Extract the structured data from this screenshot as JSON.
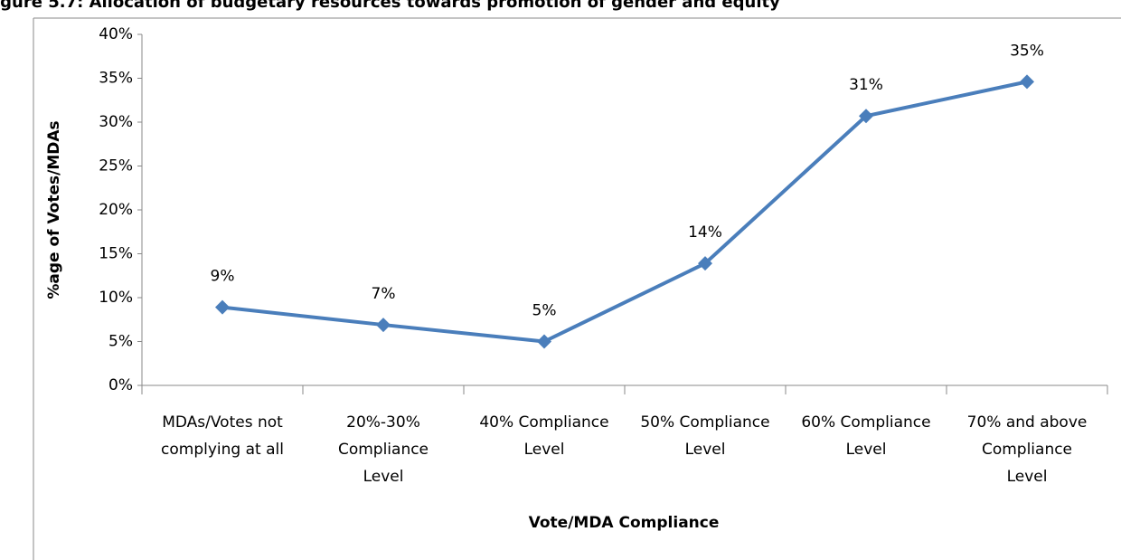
{
  "chart_data": {
    "type": "line",
    "title": "igure 5.7: Allocation of budgetary resources towards promotion of gender and equity",
    "x_label": "Vote/MDA Compliance",
    "y_label": "%age of Votes/MDAs",
    "categories": [
      "MDAs/Votes  not\ncomplying at all",
      "20%-30%\nCompliance\nLevel",
      "40% Compliance\nLevel",
      "50% Compliance\nLevel",
      "60% Compliance\nLevel",
      "70% and above\nCompliance\nLevel"
    ],
    "values": [
      8.9,
      6.9,
      5.0,
      13.9,
      30.7,
      34.6
    ],
    "value_labels": [
      "9%",
      "7%",
      "5%",
      "14%",
      "31%",
      "35%"
    ],
    "color": "#4a7ebb",
    "ylim": [
      0,
      40
    ],
    "yticks": [
      {
        "value": 0,
        "label": "0%"
      },
      {
        "value": 5,
        "label": "5%"
      },
      {
        "value": 10,
        "label": "10%"
      },
      {
        "value": 15,
        "label": "15%"
      },
      {
        "value": 20,
        "label": "20%"
      },
      {
        "value": 25,
        "label": "25%"
      },
      {
        "value": 30,
        "label": "30%"
      },
      {
        "value": 35,
        "label": "35%"
      },
      {
        "value": 40,
        "label": "40%"
      }
    ],
    "grid": false
  }
}
